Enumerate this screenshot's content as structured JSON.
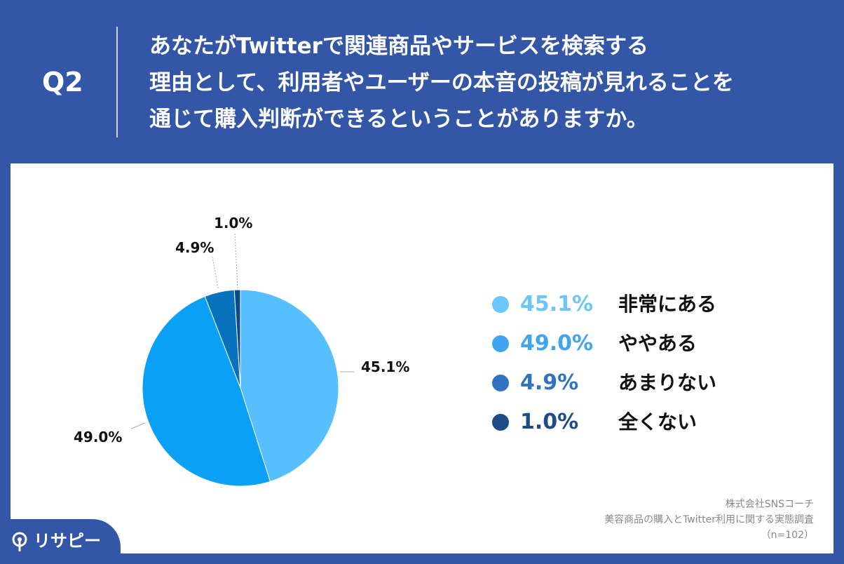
{
  "header": {
    "q_label": "Q2",
    "question": "あなたがTwitterで関連商品やサービスを検索する\n理由として、利用者やユーザーの本音の投稿が見れることを\n通じて購入判断ができるということがありますか。"
  },
  "chart_data": {
    "type": "pie",
    "slices": [
      {
        "label": "非常にある",
        "value": 45.1,
        "display": "45.1%",
        "color": "#58bfff"
      },
      {
        "label": "ややある",
        "value": 49.0,
        "display": "49.0%",
        "color": "#0aa0f5"
      },
      {
        "label": "あまりない",
        "value": 4.9,
        "display": "4.9%",
        "color": "#0972be"
      },
      {
        "label": "全くない",
        "value": 1.0,
        "display": "1.0%",
        "color": "#0d4a8c"
      }
    ],
    "legend_placement": "right"
  },
  "legend": {
    "items": [
      {
        "value": "45.1%",
        "label": "非常にある",
        "color": "#6cc6f7"
      },
      {
        "value": "49.0%",
        "label": "ややある",
        "color": "#3fa5f3"
      },
      {
        "value": "4.9%",
        "label": "あまりない",
        "color": "#3173be"
      },
      {
        "value": "1.0%",
        "label": "全くない",
        "color": "#1d4c85"
      }
    ]
  },
  "source": {
    "line1": "株式会社SNSコーチ",
    "line2": "美容商品の購入とTwitter利用に関する実態調査",
    "line3": "（n=102）"
  },
  "logo": {
    "text": "リサピー"
  }
}
